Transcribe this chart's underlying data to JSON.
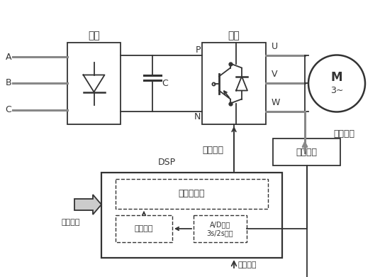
{
  "bg_color": "#ffffff",
  "line_color": "#333333",
  "gray_color": "#888888",
  "labels": {
    "zhengliou": "整流",
    "nibien": "逆变",
    "A": "A",
    "B": "B",
    "C": "C",
    "P": "P",
    "C_cap": "C",
    "N": "N",
    "U": "U",
    "V": "V",
    "W": "W",
    "M": "M",
    "M_sub": "3~",
    "dianliu_jiance": "电流检测",
    "xinhao_tiaoli": "信号调理",
    "qudong_xinhao": "驱动信号",
    "DSP": "DSP",
    "qita_xinhao": "其它信号",
    "shiliang_kongzhiqi": "矢量控制器",
    "cilian_guance": "磁链观测",
    "AD_zhuanhuan": "A/D转换\n3s/2s变换",
    "kongzhi_shuru": "控制输入"
  },
  "figsize": [
    5.36,
    3.9
  ],
  "dpi": 100
}
